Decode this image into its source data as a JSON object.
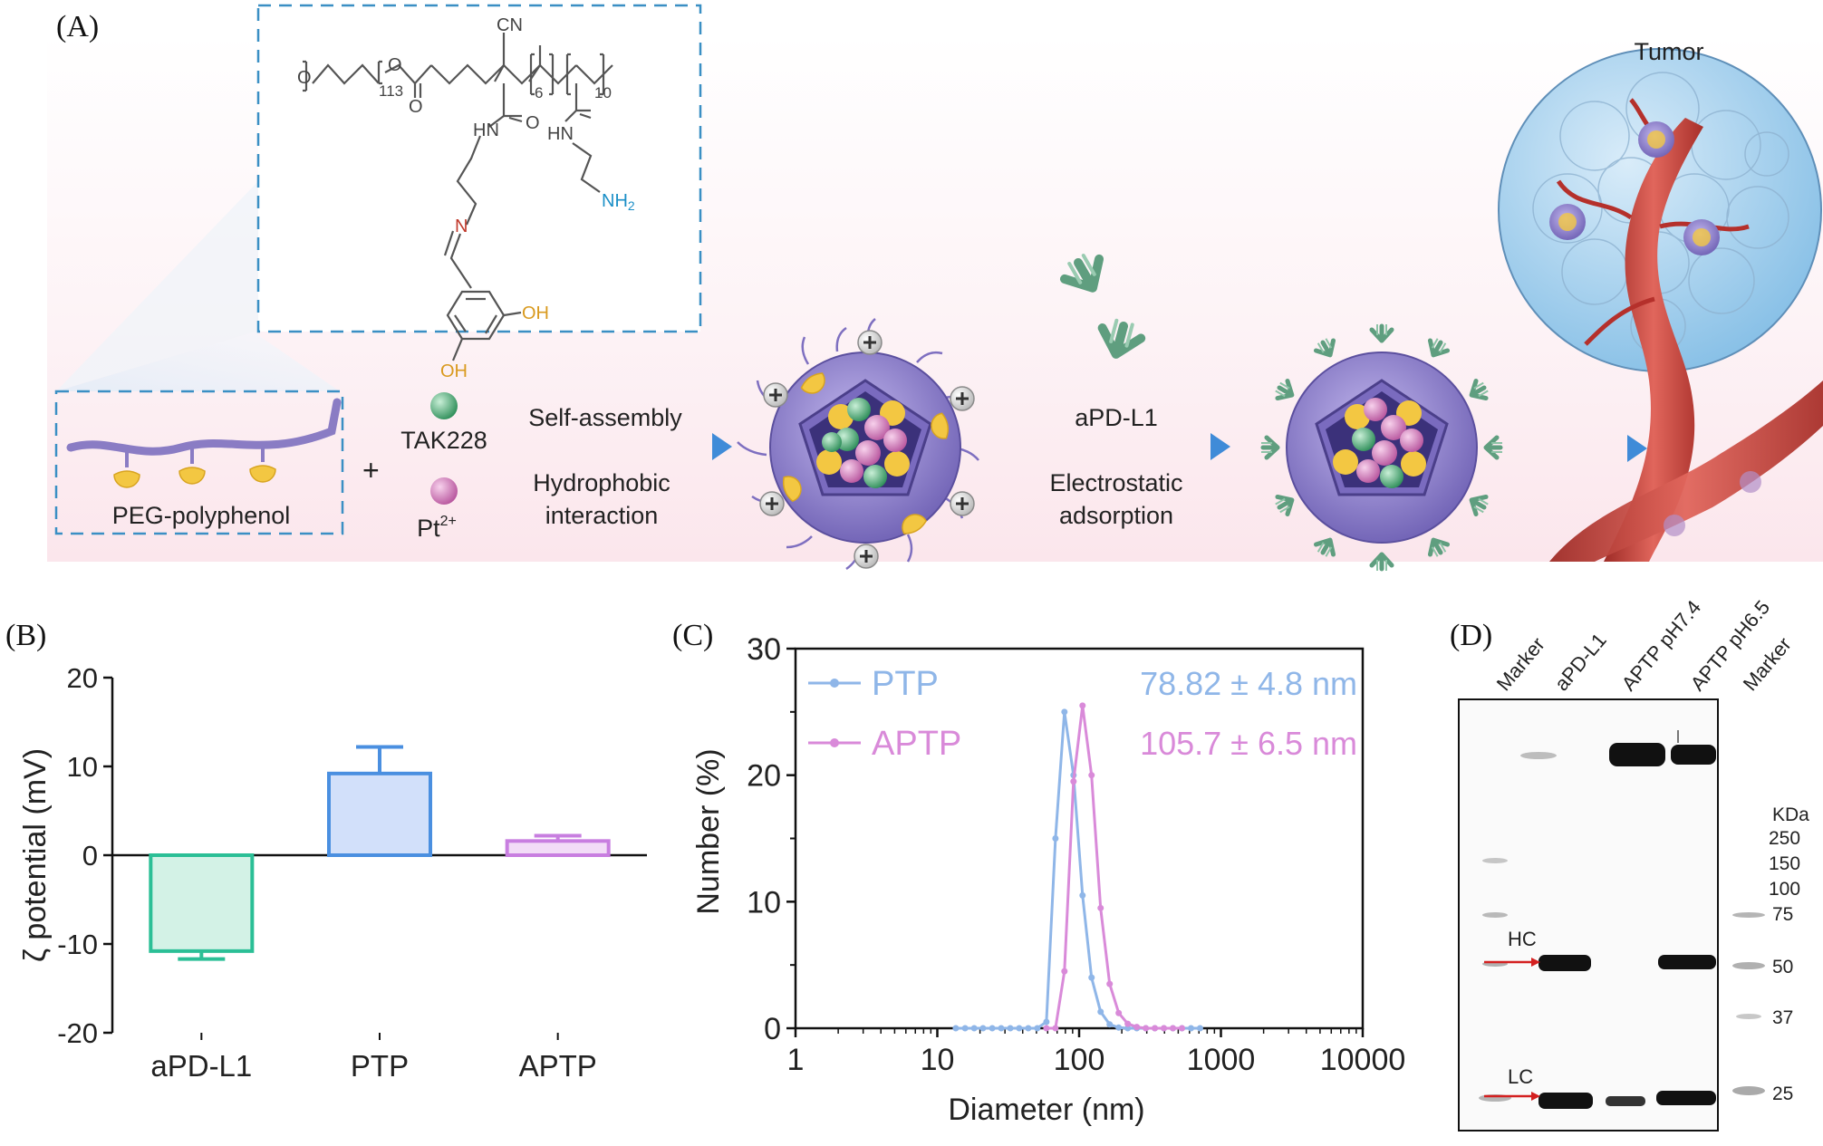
{
  "panel_a": {
    "label": "(A)",
    "chem": {
      "peg_n": "113",
      "m6": "6",
      "m10": "10",
      "cn": "CN",
      "o1": "O",
      "o2": "O",
      "o3": "O",
      "o4": "O",
      "hn1": "HN",
      "hn2": "HN",
      "n_imine": "N",
      "nh2": "NH",
      "nh2_sub": "2",
      "oh1": "OH",
      "oh2": "OH"
    },
    "peg_label": "PEG-polyphenol",
    "plus": "+",
    "tak": "TAK228",
    "pt": "Pt",
    "pt_sup": "2+",
    "step1_top": "Self-assembly",
    "step1_bottom_1": "Hydrophobic",
    "step1_bottom_2": "interaction",
    "step2_top": "aPD-L1",
    "step2_bottom_1": "Electrostatic",
    "step2_bottom_2": "adsorption",
    "tumor": "Tumor",
    "colors": {
      "bg_pink": "#fbe9ee",
      "arrow": "#4a90d9",
      "particle": "#8a7cc4",
      "antibody": "#6aa58a",
      "vessel": "#c8433c",
      "tumor": "#a9d2ec"
    }
  },
  "panel_b": {
    "label": "(B)",
    "chart_data": {
      "type": "bar",
      "categories": [
        "aPD-L1",
        "PTP",
        "APTP"
      ],
      "values": [
        -10.8,
        9.2,
        1.6
      ],
      "errors": [
        0.9,
        3.0,
        0.6
      ],
      "colors": [
        "#2bbf96",
        "#4a8fe0",
        "#c87ee0"
      ],
      "fills": [
        "#d3f2e6",
        "#d2e0fa",
        "#f2dcf7"
      ],
      "ylabel": "ζ potential (mV)",
      "ylim": [
        -20,
        20
      ],
      "yticks": [
        -20,
        -10,
        0,
        10,
        20
      ]
    }
  },
  "panel_c": {
    "label": "(C)",
    "chart_data": {
      "type": "line",
      "xscale": "log",
      "xlabel": "Diameter (nm)",
      "ylabel": "Number (%)",
      "xlim": [
        1,
        10000
      ],
      "ylim": [
        0,
        30
      ],
      "xticks": [
        1,
        10,
        100,
        1000,
        10000
      ],
      "yticks": [
        0,
        10,
        20,
        30
      ],
      "series": [
        {
          "name": "PTP",
          "color": "#8fb6e8",
          "annotation": "78.82 ± 4.8 nm",
          "x": [
            13.5,
            15.7,
            18.2,
            21.0,
            24.4,
            28.2,
            32.7,
            37.8,
            43.8,
            50.7,
            58.8,
            68.1,
            78.8,
            91.3,
            105.7,
            122.4,
            141.8,
            164.2,
            190.1,
            220.2,
            255.0,
            295.3,
            342.0,
            396.1,
            458.7,
            531.2,
            615.1,
            712.4
          ],
          "y": [
            0,
            0,
            0,
            0,
            0,
            0,
            0,
            0,
            0,
            0,
            0.5,
            15.0,
            25.0,
            20.0,
            10.5,
            4.0,
            1.3,
            0.3,
            0.05,
            0,
            0,
            0,
            0,
            0,
            0,
            0,
            0,
            0
          ]
        },
        {
          "name": "APTP",
          "color": "#d98ad9",
          "annotation": "105.7 ± 6.5 nm",
          "x": [
            58.8,
            68.1,
            78.8,
            91.3,
            105.7,
            122.4,
            141.8,
            164.2,
            190.1,
            220.2,
            255.0,
            295.3,
            342.0,
            396.1,
            458.7,
            531.2
          ],
          "y": [
            0,
            0,
            4.5,
            19.5,
            25.5,
            20.0,
            9.5,
            3.5,
            1.2,
            0.35,
            0.1,
            0,
            0,
            0,
            0,
            0
          ]
        }
      ]
    }
  },
  "panel_d": {
    "label": "(D)",
    "lanes": [
      "Marker",
      "aPD-L1",
      "APTP pH7.4",
      "APTP pH6.5",
      "Marker"
    ],
    "kda_title": "KDa",
    "kda": [
      "250",
      "150",
      "100",
      "75",
      "50",
      "37",
      "25"
    ],
    "hc": "HC",
    "lc": "LC"
  }
}
